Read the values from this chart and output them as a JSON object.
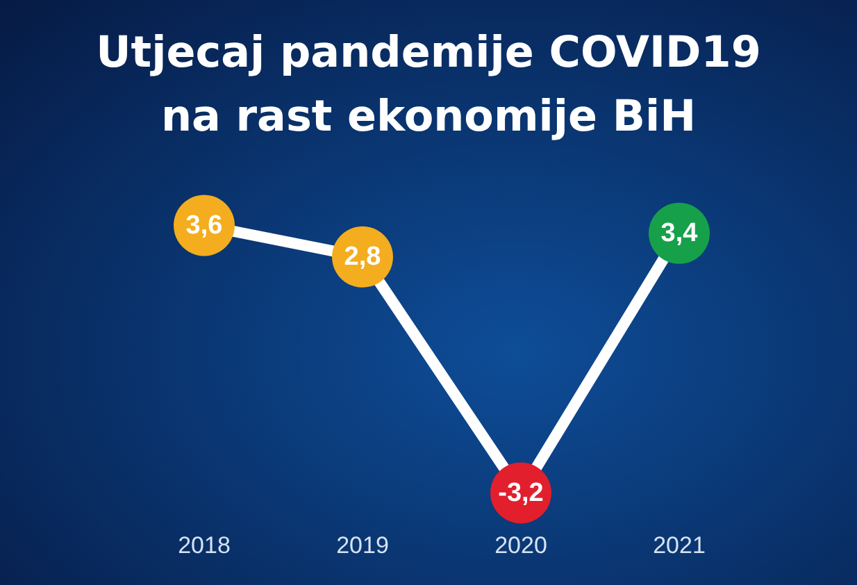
{
  "chart_data": {
    "type": "line",
    "title": "Utjecaj pandemije COVID19\nna rast ekonomije BiH",
    "categories": [
      "2018",
      "2019",
      "2020",
      "2021"
    ],
    "values": [
      3.6,
      2.8,
      -3.2,
      3.4
    ],
    "value_labels": [
      "3,6",
      "2,8",
      "-3,2",
      "3,4"
    ],
    "color": "#ffffff",
    "colors": [
      "#f4ad1e",
      "#f4ad1e",
      "#e11f2d",
      "#17a04a"
    ],
    "marker": "circle",
    "line_style": "solid",
    "tick_labels": "x"
  }
}
